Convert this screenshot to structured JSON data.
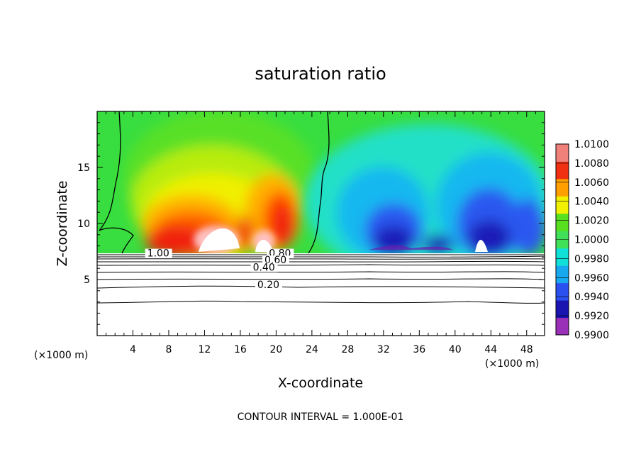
{
  "chart_data": {
    "type": "heatmap",
    "title": "saturation ratio",
    "xlabel": "X-coordinate",
    "ylabel": "Z-coordinate",
    "x_unit": "(×1000 m)",
    "z_unit": "(×1000 m)",
    "xlim": [
      0,
      50
    ],
    "ylim": [
      0,
      20
    ],
    "x_ticks": [
      4,
      8,
      12,
      16,
      20,
      24,
      28,
      32,
      36,
      40,
      44,
      48
    ],
    "y_ticks": [
      5,
      10,
      15
    ],
    "colorbar": {
      "min": 0.99,
      "max": 1.01,
      "labels": [
        "1.0100",
        "1.0080",
        "1.0060",
        "1.0040",
        "1.0020",
        "1.0000",
        "0.9980",
        "0.9960",
        "0.9940",
        "0.9920",
        "0.9900"
      ],
      "colors": [
        "#9a2fb8",
        "#1a14b0",
        "#2a50f0",
        "#18a8f0",
        "#10e0d8",
        "#40e058",
        "#58e020",
        "#f0f000",
        "#ffa000",
        "#f03010",
        "#f0807a"
      ]
    },
    "field_description": "Filled contours of saturation ratio above cloud base (~7.2 km); supersaturated region (red/orange/yellow) for x≈3–24 km with maxima near x≈12 and x≈20 km at z≈9–10 km; subsaturated region (blue/purple) for x≈26–50 km with minima near x≈33, 42, 48 km at z≈8–9 km.",
    "line_contours": {
      "interval": 0.1,
      "labels": [
        "1.00",
        "0.80",
        "0.60",
        "0.40",
        "0.20"
      ],
      "approx_z": [
        {
          "label": "1.00",
          "z": 7.2
        },
        {
          "label": "0.80",
          "z": 6.9
        },
        {
          "label": "0.60",
          "z": 6.5
        },
        {
          "label": "0.40",
          "z": 5.9
        },
        {
          "label": "0.20",
          "z": 4.4
        }
      ]
    },
    "footer": "CONTOUR INTERVAL = 1.000E-01"
  }
}
